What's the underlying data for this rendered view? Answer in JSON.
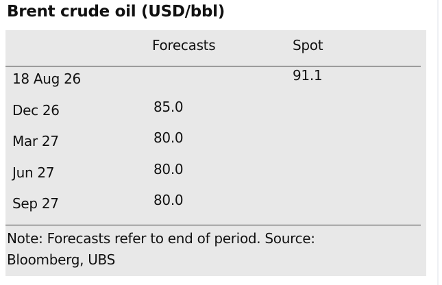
{
  "header": {
    "title": "Brent crude oil (USD/bbl)"
  },
  "table": {
    "columns": {
      "forecast": "Forecasts",
      "spot": "Spot"
    },
    "rows": [
      {
        "label": "18 Aug 26",
        "spot": "91.1"
      },
      {
        "label": "Dec 26",
        "forecast": "85.0"
      },
      {
        "label": "Mar 27",
        "forecast": "80.0"
      },
      {
        "label": "Jun 27",
        "forecast": "80.0"
      },
      {
        "label": "Sep 27",
        "forecast": "80.0"
      }
    ]
  },
  "note": "Note: Forecasts refer to end of period. Source: Bloomberg, UBS"
}
